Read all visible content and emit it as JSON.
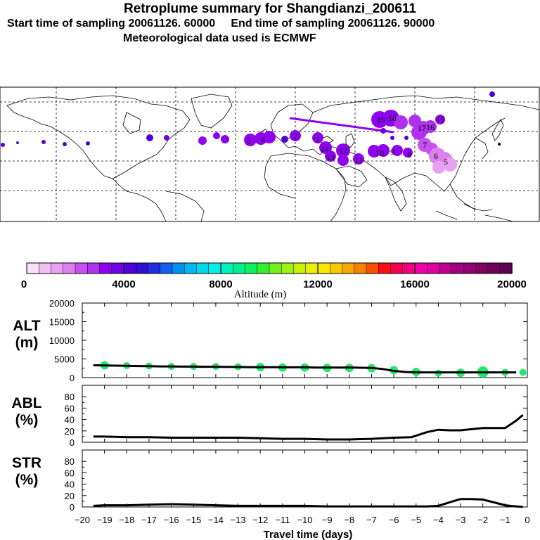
{
  "header": {
    "title": "Retroplume summary for Shangdianzi_200611",
    "subtitle": "Start time of sampling 20061126. 60000     End time of sampling 20061126. 90000",
    "met": "Meteorological data used is ECMWF"
  },
  "colorbar": {
    "label": "Altitude (m)",
    "ticks": [
      "0",
      "4000",
      "8000",
      "12000",
      "16000",
      "20000"
    ],
    "colors": [
      "#f8e0f8",
      "#f0c0f0",
      "#e8a0f0",
      "#dc80f0",
      "#c850f0",
      "#b030f0",
      "#9000f0",
      "#7000e8",
      "#5000d8",
      "#3010d0",
      "#2030e0",
      "#1060f0",
      "#0090f0",
      "#00b8f0",
      "#00d8f0",
      "#00f0e8",
      "#00f0c0",
      "#00f090",
      "#10f060",
      "#30f030",
      "#70f020",
      "#a0f010",
      "#c8f000",
      "#e8f000",
      "#f8e800",
      "#f8c800",
      "#f8a800",
      "#f88000",
      "#f85000",
      "#f81010",
      "#f80050",
      "#f00080",
      "#f000a8",
      "#e000a0",
      "#c00090",
      "#a00080",
      "#900070",
      "#800060",
      "#700058",
      "#600050"
    ]
  },
  "map": {
    "plume_labels": [
      "19",
      "18",
      "17",
      "16",
      "15",
      "14",
      "13",
      "12",
      "11",
      "10",
      "9",
      "8",
      "7",
      "6",
      "5",
      "4",
      "3",
      "2",
      "1"
    ]
  },
  "chart_data": [
    {
      "type": "line",
      "id": "alt",
      "ylabel": "ALT\n(m)",
      "ylabel_lines": [
        "ALT",
        "(m)"
      ],
      "ylim": [
        0,
        20000
      ],
      "yticks": [
        "20000",
        "15000",
        "10000",
        "5000",
        "0"
      ],
      "x": [
        -19.5,
        -19,
        -18.5,
        -18,
        -17.5,
        -17,
        -16.5,
        -16,
        -15.5,
        -15,
        -14.5,
        -14,
        -13.5,
        -13,
        -12.5,
        -12,
        -11.5,
        -11,
        -10.5,
        -10,
        -9.5,
        -9,
        -8.5,
        -8,
        -7.5,
        -7,
        -6.5,
        -6,
        -5.5,
        -5,
        -4.5,
        -4,
        -3.5,
        -3,
        -2.5,
        -2,
        -1.5,
        -1,
        -0.5
      ],
      "values": [
        3300,
        3250,
        3200,
        3150,
        3100,
        3050,
        3000,
        3000,
        2950,
        2950,
        2900,
        2900,
        2850,
        2850,
        2800,
        2800,
        2800,
        2750,
        2750,
        2750,
        2700,
        2700,
        2700,
        2700,
        2650,
        2600,
        2300,
        1800,
        1500,
        1400,
        1400,
        1400,
        1400,
        1400,
        1400,
        1400,
        1400,
        1400,
        1400
      ],
      "markers": [
        {
          "x": -19,
          "y": 3300,
          "r": 6
        },
        {
          "x": -18,
          "y": 3200,
          "r": 5
        },
        {
          "x": -17,
          "y": 3100,
          "r": 5
        },
        {
          "x": -16,
          "y": 3000,
          "r": 5
        },
        {
          "x": -15,
          "y": 3000,
          "r": 5
        },
        {
          "x": -14,
          "y": 3000,
          "r": 5
        },
        {
          "x": -13,
          "y": 2900,
          "r": 5
        },
        {
          "x": -12,
          "y": 2800,
          "r": 6
        },
        {
          "x": -11,
          "y": 2700,
          "r": 6
        },
        {
          "x": -10,
          "y": 2700,
          "r": 6
        },
        {
          "x": -9,
          "y": 2600,
          "r": 6
        },
        {
          "x": -8,
          "y": 2600,
          "r": 6
        },
        {
          "x": -7,
          "y": 2500,
          "r": 6
        },
        {
          "x": -6,
          "y": 2000,
          "r": 6
        },
        {
          "x": -5,
          "y": 1500,
          "r": 6
        },
        {
          "x": -4,
          "y": 1200,
          "r": 5
        },
        {
          "x": -3,
          "y": 1300,
          "r": 6
        },
        {
          "x": -2,
          "y": 1500,
          "r": 8
        },
        {
          "x": -1,
          "y": 1400,
          "r": 5
        },
        {
          "x": -0.2,
          "y": 1400,
          "r": 5
        }
      ]
    },
    {
      "type": "line",
      "id": "abl",
      "ylabel": "ABL\n(%)",
      "ylabel_lines": [
        "ABL",
        "(%)"
      ],
      "ylim": [
        0,
        100
      ],
      "yticks": [
        "80",
        "60",
        "40",
        "20",
        "0"
      ],
      "x": [
        -19.5,
        -19,
        -18,
        -17,
        -16,
        -15,
        -14,
        -13,
        -12,
        -11,
        -10,
        -9,
        -8,
        -7,
        -6,
        -5.2,
        -4.5,
        -4,
        -3.5,
        -3,
        -2.5,
        -2,
        -1.5,
        -1,
        -0.5,
        -0.2
      ],
      "values": [
        10,
        10,
        9,
        9,
        8,
        8,
        8,
        8,
        7,
        6,
        6,
        5,
        5,
        6,
        8,
        9,
        18,
        22,
        21,
        21,
        23,
        25,
        25,
        25,
        38,
        48
      ]
    },
    {
      "type": "line",
      "id": "str",
      "ylabel": "STR\n(%)",
      "ylabel_lines": [
        "STR",
        "(%)"
      ],
      "ylim": [
        0,
        100
      ],
      "yticks": [
        "80",
        "60",
        "40",
        "20",
        "0"
      ],
      "xlabel": "Travel time (days)",
      "xlim": [
        -20,
        0
      ],
      "xticks": [
        "−20",
        "−19",
        "−18",
        "−17",
        "−16",
        "−15",
        "−14",
        "−13",
        "−12",
        "−11",
        "−10",
        "−9",
        "−8",
        "−7",
        "−6",
        "−5",
        "−4",
        "−3",
        "−2",
        "−1",
        "0"
      ],
      "x": [
        -19.5,
        -19,
        -18,
        -17,
        -16,
        -15,
        -14,
        -13,
        -12,
        -11,
        -10,
        -9,
        -8,
        -7,
        -6,
        -5,
        -4.5,
        -4,
        -3.5,
        -3,
        -2.5,
        -2,
        -1.5,
        -1,
        -0.5,
        -0.2
      ],
      "values": [
        2,
        3,
        3,
        4,
        5,
        4,
        3,
        2,
        2,
        2,
        2,
        1,
        1,
        1,
        1,
        1,
        1,
        2,
        8,
        14,
        14,
        13,
        8,
        3,
        1,
        0
      ]
    }
  ]
}
